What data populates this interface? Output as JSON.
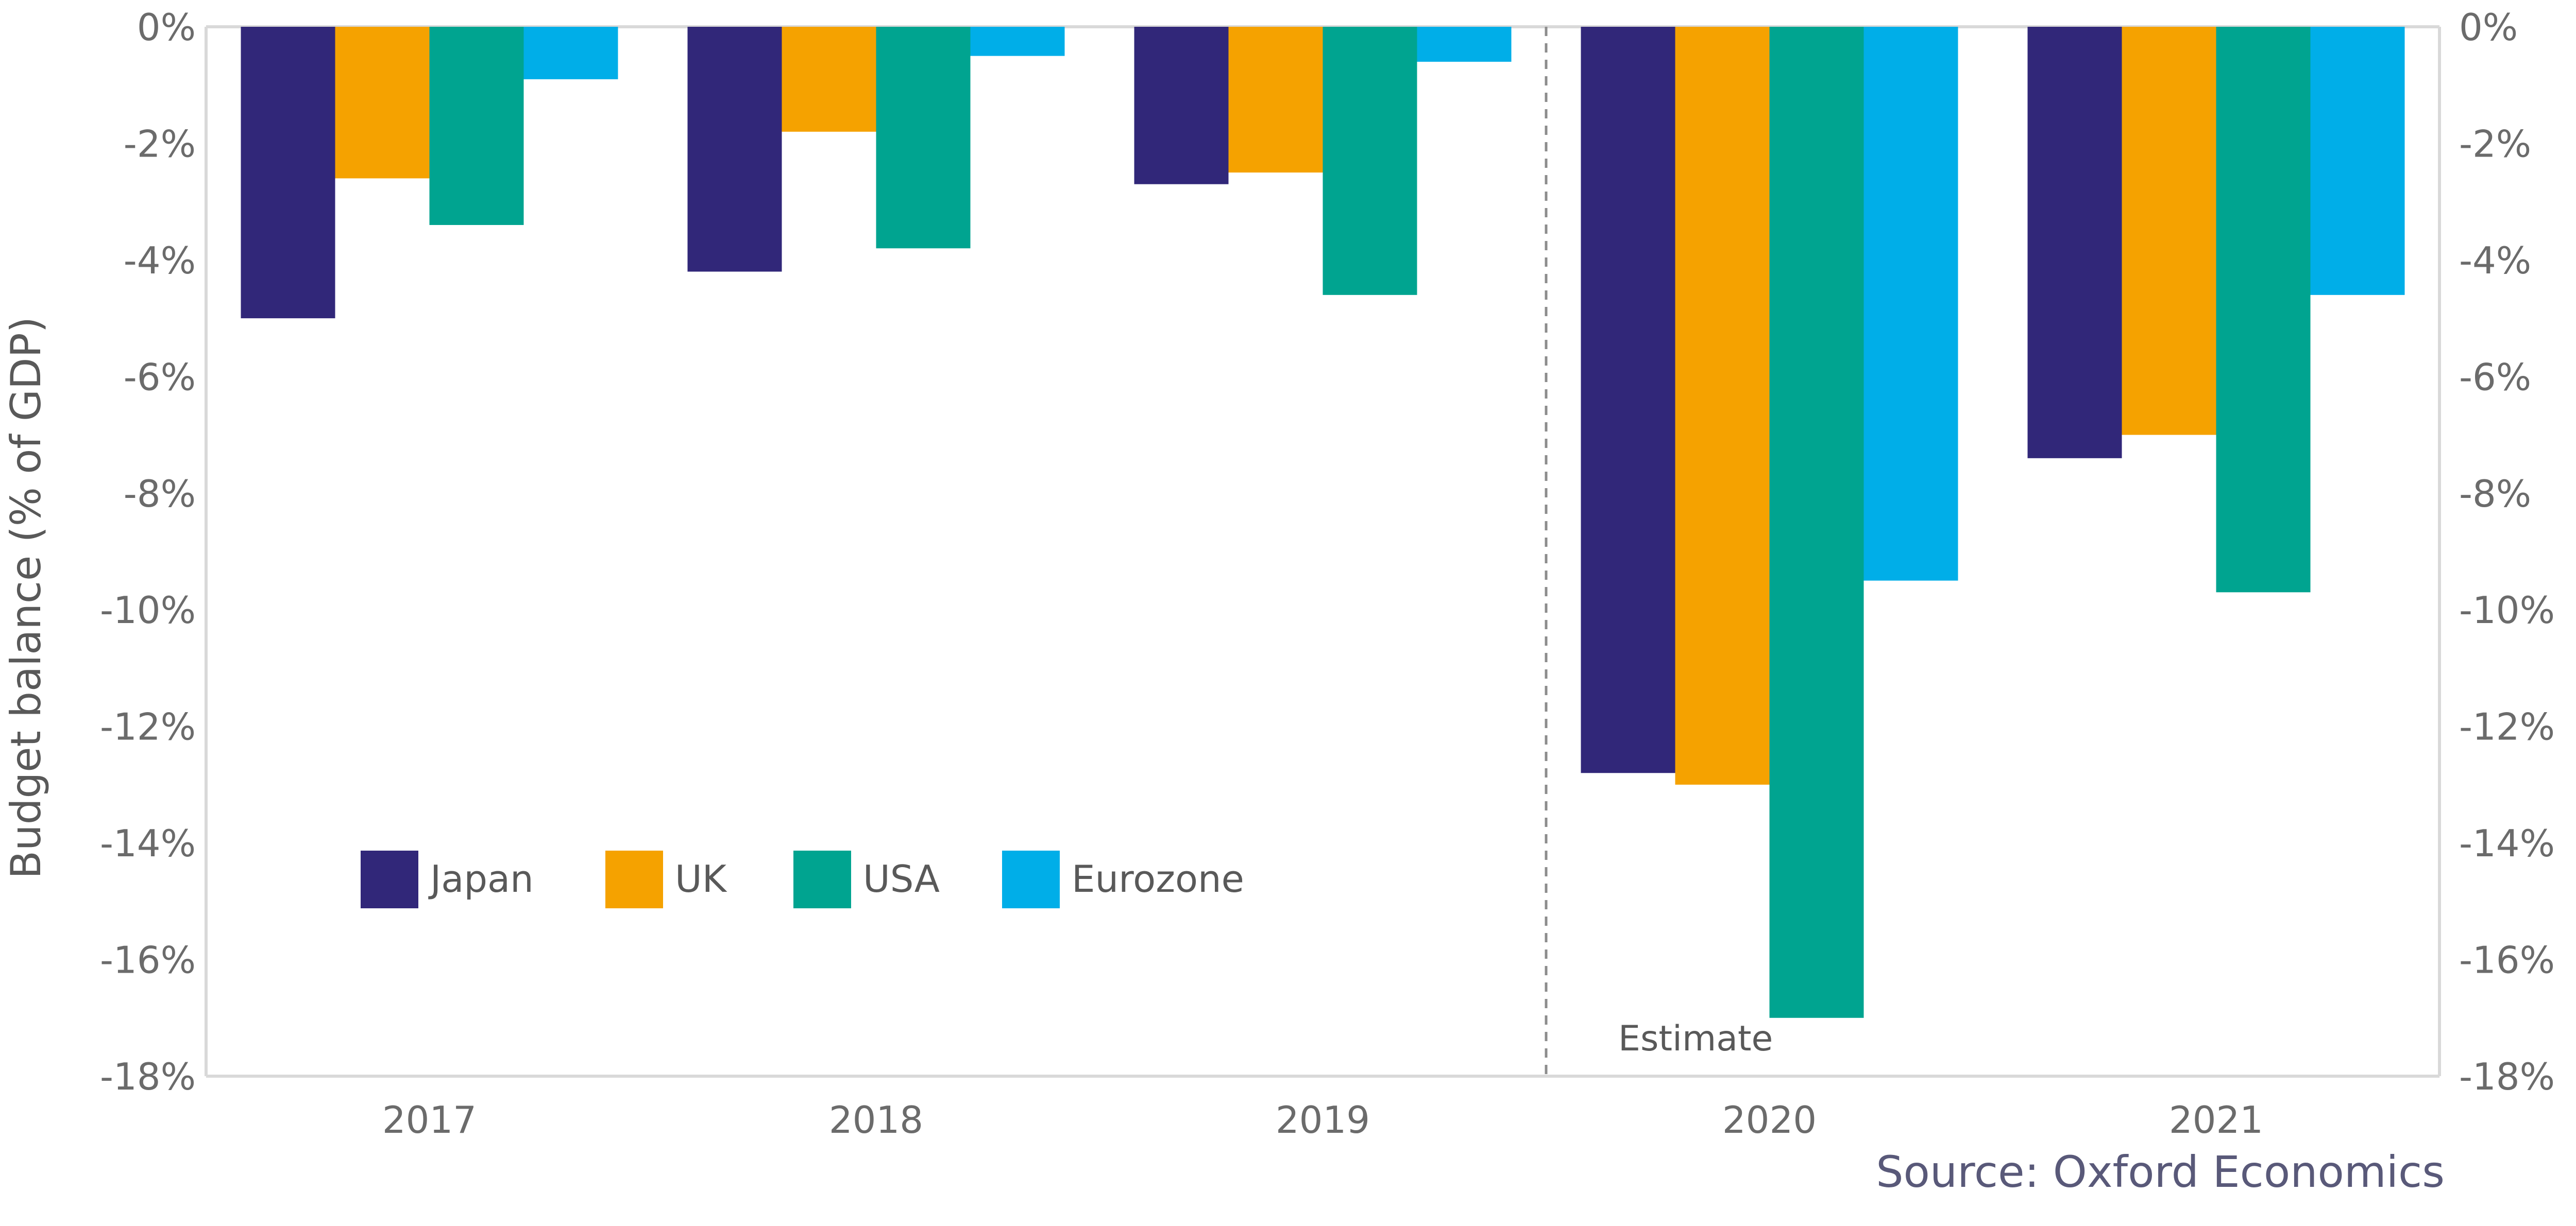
{
  "chart_data": {
    "type": "bar",
    "ylabel": "Budget balance (% of GDP)",
    "categories": [
      "2017",
      "2018",
      "2019",
      "2020",
      "2021"
    ],
    "ylim": [
      -18,
      0
    ],
    "yticks": [
      0,
      -2,
      -4,
      -6,
      -8,
      -10,
      -12,
      -14,
      -16,
      -18
    ],
    "ytick_labels": [
      "0%",
      "-2%",
      "-4%",
      "-6%",
      "-8%",
      "-10%",
      "-12%",
      "-14%",
      "-16%",
      "-18%"
    ],
    "series": [
      {
        "name": "Japan",
        "color": "#312779",
        "values": [
          -5.0,
          -4.2,
          -2.7,
          -12.8,
          -7.4
        ]
      },
      {
        "name": "UK",
        "color": "#f5a200",
        "values": [
          -2.6,
          -1.8,
          -2.5,
          -13.0,
          -7.0
        ]
      },
      {
        "name": "USA",
        "color": "#00a490",
        "values": [
          -3.4,
          -3.8,
          -4.6,
          -17.0,
          -9.7
        ]
      },
      {
        "name": "Eurozone",
        "color": "#00aee8",
        "values": [
          -0.9,
          -0.5,
          -0.6,
          -9.5,
          -4.6
        ]
      }
    ],
    "annotation": "Estimate",
    "source": "Source: Oxford Economics",
    "legend_position": "bottom-left inside plot",
    "grid": false,
    "secondary_y_axis": true
  }
}
